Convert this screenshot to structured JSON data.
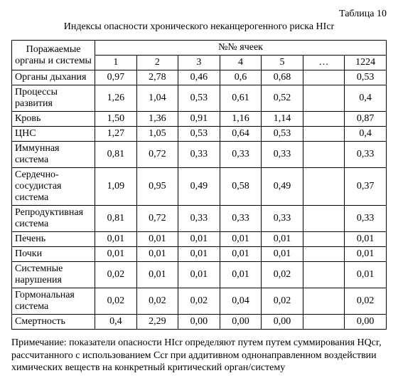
{
  "table_label": "Таблица 10",
  "title": "Индексы опасности хронического неканцерогенного риска HIcr",
  "header": {
    "organ": "Поражаемые органы и системы",
    "cells_group": "№№ ячеек",
    "cols": [
      "1",
      "2",
      "3",
      "4",
      "5",
      "…",
      "1224"
    ]
  },
  "rows": [
    {
      "organ": "Органы дыхания",
      "v": [
        "0,97",
        "2,78",
        "0,46",
        "0,6",
        "0,68",
        "",
        "0,53"
      ]
    },
    {
      "organ": "Процессы развития",
      "v": [
        "1,26",
        "1,04",
        "0,53",
        "0,61",
        "0,52",
        "",
        "0,4"
      ]
    },
    {
      "organ": "Кровь",
      "v": [
        "1,50",
        "1,36",
        "0,91",
        "1,16",
        "1,14",
        "",
        "0,87"
      ]
    },
    {
      "organ": "ЦНС",
      "v": [
        "1,27",
        "1,05",
        "0,53",
        "0,64",
        "0,53",
        "",
        "0,4"
      ]
    },
    {
      "organ": "Иммунная система",
      "v": [
        "0,81",
        "0,72",
        "0,33",
        "0,33",
        "0,33",
        "",
        "0,33"
      ]
    },
    {
      "organ": "Сердечно-сосудистая система",
      "v": [
        "1,09",
        "0,95",
        "0,49",
        "0,58",
        "0,49",
        "",
        "0,37"
      ]
    },
    {
      "organ": "Репродуктивная система",
      "v": [
        "0,81",
        "0,72",
        "0,33",
        "0,33",
        "0,33",
        "",
        "0,33"
      ]
    },
    {
      "organ": "Печень",
      "v": [
        "0,01",
        "0,01",
        "0,01",
        "0,01",
        "0,01",
        "",
        "0,01"
      ]
    },
    {
      "organ": "Почки",
      "v": [
        "0,01",
        "0,01",
        "0,01",
        "0,01",
        "0,01",
        "",
        "0,01"
      ]
    },
    {
      "organ": "Системные нарушения",
      "v": [
        "0,02",
        "0,01",
        "0,01",
        "0,01",
        "0,02",
        "",
        "0,01"
      ]
    },
    {
      "organ": "Гормональная система",
      "v": [
        "0,02",
        "0,02",
        "0,02",
        "0,04",
        "0,02",
        "",
        "0,02"
      ]
    },
    {
      "organ": "Смертность",
      "v": [
        "0,4",
        "2,29",
        "0,00",
        "0,00",
        "0,00",
        "",
        "0,00"
      ]
    }
  ],
  "note": "Примечание: показатели опасности HIcr определяют путем путем суммирования HQcr, рассчитанного с использованием Ccr при аддитивном однонаправленном воздействии химических веществ на конкретный критический орган/систему"
}
